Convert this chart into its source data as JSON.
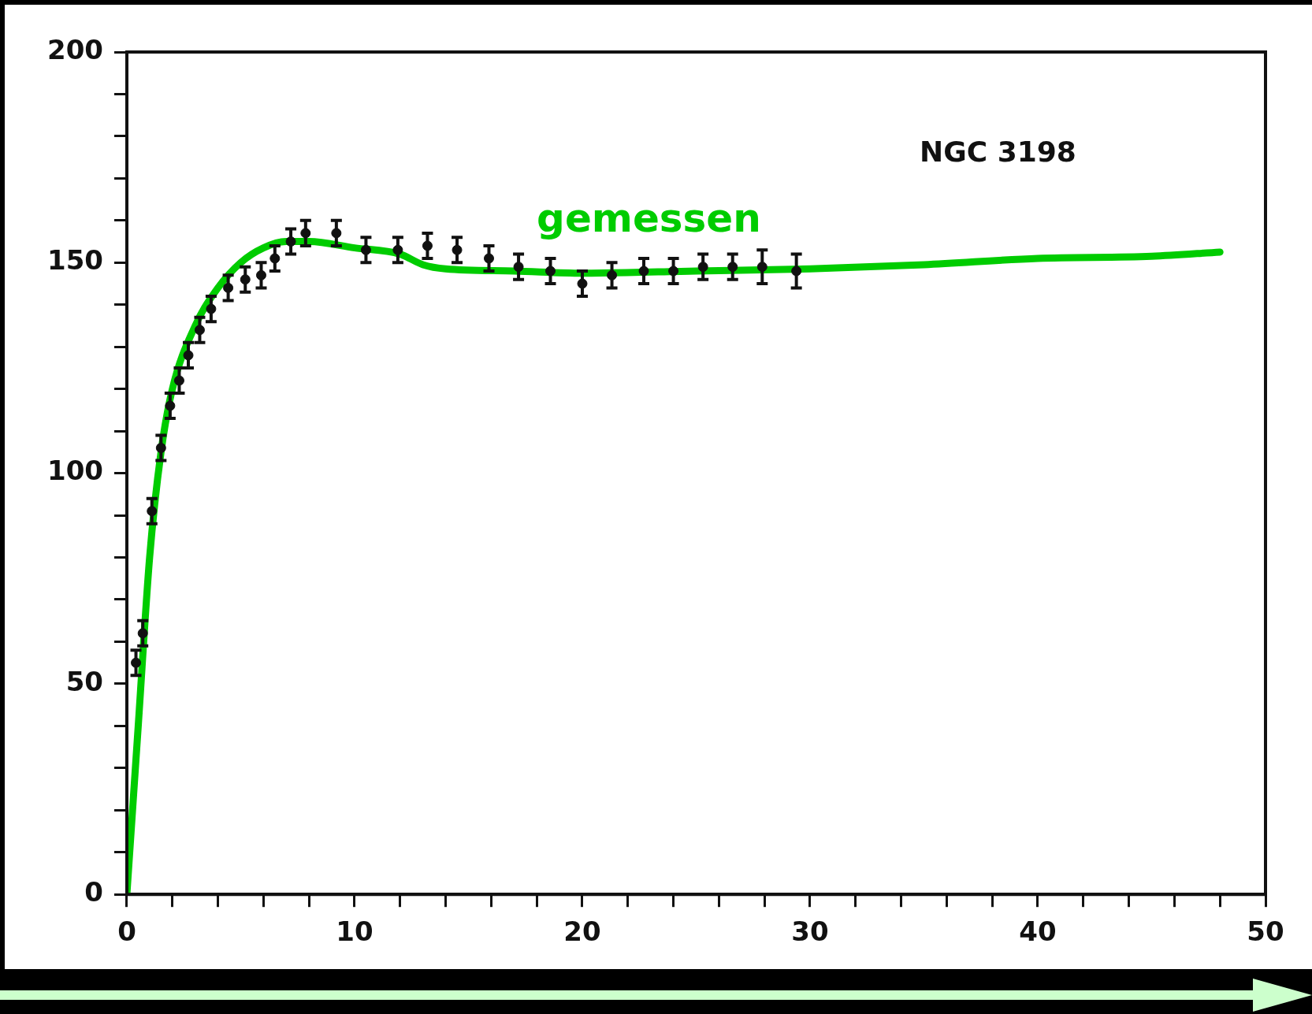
{
  "chart_data": {
    "type": "scatter",
    "annotations": [
      "NGC 3198"
    ],
    "grid": false,
    "xlim": [
      0,
      50
    ],
    "ylim": [
      0,
      200
    ],
    "xticks": [
      0,
      {
        "value": 2,
        "label": null
      },
      {
        "value": 4,
        "label": null
      },
      {
        "value": 6,
        "label": null
      },
      {
        "value": 8,
        "label": null
      },
      10,
      {
        "value": 12,
        "label": null
      },
      {
        "value": 14,
        "label": null
      },
      {
        "value": 16,
        "label": null
      },
      {
        "value": 18,
        "label": null
      },
      20,
      {
        "value": 22,
        "label": null
      },
      {
        "value": 24,
        "label": null
      },
      {
        "value": 26,
        "label": null
      },
      {
        "value": 28,
        "label": null
      },
      30,
      {
        "value": 32,
        "label": null
      },
      {
        "value": 34,
        "label": null
      },
      {
        "value": 36,
        "label": null
      },
      {
        "value": 38,
        "label": null
      },
      40,
      {
        "value": 42,
        "label": null
      },
      {
        "value": 44,
        "label": null
      },
      {
        "value": 46,
        "label": null
      },
      {
        "value": 48,
        "label": null
      },
      50
    ],
    "yticks": [
      0,
      {
        "value": 10,
        "label": null
      },
      {
        "value": 20,
        "label": null
      },
      {
        "value": 30,
        "label": null
      },
      {
        "value": 40,
        "label": null
      },
      50,
      {
        "value": 60,
        "label": null
      },
      {
        "value": 70,
        "label": null
      },
      {
        "value": 80,
        "label": null
      },
      {
        "value": 90,
        "label": null
      },
      100,
      {
        "value": 110,
        "label": null
      },
      {
        "value": 120,
        "label": null
      },
      {
        "value": 130,
        "label": null
      },
      {
        "value": 140,
        "label": null
      },
      150,
      {
        "value": 160,
        "label": null
      },
      {
        "value": 170,
        "label": null
      },
      {
        "value": 180,
        "label": null
      },
      {
        "value": 190,
        "label": null
      },
      200
    ],
    "series": [
      {
        "marker": "circle",
        "color": "#111111",
        "x": [
          0.4,
          0.7,
          1.1,
          1.5,
          1.9,
          2.3,
          2.7,
          3.2,
          3.7,
          4.45,
          5.2,
          5.9,
          6.5,
          7.2,
          7.85,
          9.2,
          10.5,
          11.9,
          13.2,
          14.5,
          15.9,
          17.2,
          18.6,
          20.0,
          21.3,
          22.7,
          24.0,
          25.3,
          26.6,
          27.9,
          29.4
        ],
        "values": [
          55,
          62,
          91,
          106,
          116,
          122,
          128,
          134,
          139,
          144,
          146,
          147,
          151,
          155,
          157,
          157,
          153,
          153,
          154,
          153,
          151,
          149,
          148,
          145,
          147,
          148,
          148,
          149,
          149,
          149,
          148
        ],
        "errors": [
          3,
          3,
          3,
          3,
          3,
          3,
          3,
          3,
          3,
          3,
          3,
          3,
          3,
          3,
          3,
          3,
          3,
          3,
          3,
          3,
          3,
          3,
          3,
          3,
          3,
          3,
          3,
          3,
          3,
          4,
          4
        ]
      },
      {
        "type": "line",
        "marker": "none",
        "name": "gemessen",
        "color": "#00cc00",
        "x": [
          0,
          0.5,
          1,
          1.5,
          2,
          3,
          4,
          5,
          6,
          7,
          8,
          10,
          12,
          13,
          14,
          17,
          20,
          25,
          30,
          35,
          40,
          45,
          48
        ],
        "values": [
          0,
          40,
          80,
          105,
          120,
          135,
          144,
          150,
          153.5,
          155,
          155,
          153.5,
          152,
          149.5,
          148.5,
          148,
          147.5,
          148,
          148.5,
          149.5,
          151,
          151.5,
          152.5
        ]
      }
    ]
  }
}
